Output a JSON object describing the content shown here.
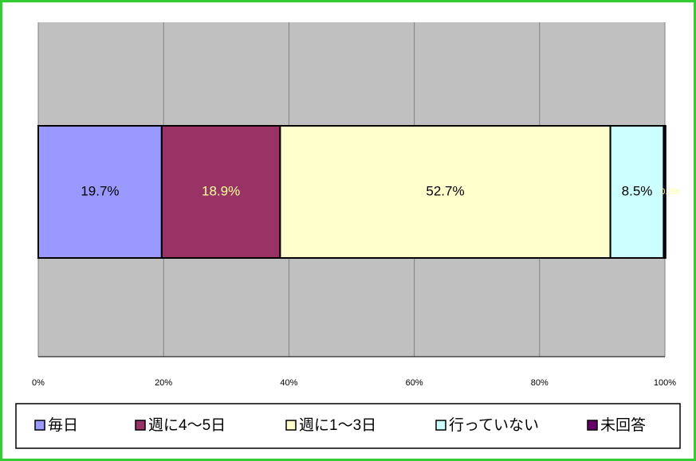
{
  "chart_data": {
    "type": "bar",
    "orientation": "horizontal",
    "stacked": true,
    "categories": [
      null
    ],
    "series": [
      {
        "name": "毎日",
        "color": "#9999ff",
        "values": [
          19.7
        ],
        "value_labels": [
          "19.7%"
        ]
      },
      {
        "name": "週に4～5日",
        "color": "#993366",
        "values": [
          18.9
        ],
        "value_labels": [
          "18.9%"
        ]
      },
      {
        "name": "週に1～3日",
        "color": "#ffffcc",
        "values": [
          52.7
        ],
        "value_labels": [
          "52.7%"
        ]
      },
      {
        "name": "行っていない",
        "color": "#ccffff",
        "values": [
          8.5
        ],
        "value_labels": [
          "8.5%"
        ]
      },
      {
        "name": "未回答",
        "color": "#660066",
        "values": [
          0.3
        ],
        "value_labels": [
          "0.3%"
        ]
      }
    ],
    "xlim": [
      0,
      100
    ],
    "xticks": [
      {
        "value": 0,
        "label": "0%"
      },
      {
        "value": 20,
        "label": "20%"
      },
      {
        "value": 40,
        "label": "40%"
      },
      {
        "value": 60,
        "label": "60%"
      },
      {
        "value": 80,
        "label": "80%"
      },
      {
        "value": 100,
        "label": "100%"
      }
    ],
    "grid": true,
    "legend": "bottom"
  }
}
